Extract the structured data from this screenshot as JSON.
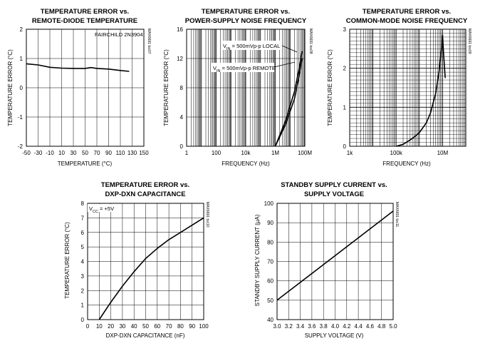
{
  "chart_data": [
    {
      "id": "c1",
      "type": "line",
      "title": [
        "TEMPERATURE ERROR vs.",
        "REMOTE-DIODE TEMPERATURE"
      ],
      "xlabel": "TEMPERATURE (°C)",
      "ylabel": "TEMPERATURE ERROR (°C)",
      "xscale": "linear",
      "xlim": [
        -50,
        150
      ],
      "ylim": [
        -2,
        2
      ],
      "xticks": [
        -50,
        -30,
        -10,
        10,
        30,
        50,
        70,
        90,
        110,
        130,
        150
      ],
      "xtick_labels": [
        "-50",
        "-30",
        "-10",
        "10",
        "30",
        "50",
        "70",
        "90",
        "110",
        "130",
        "150"
      ],
      "yticks": [
        -2,
        -1,
        0,
        1,
        2
      ],
      "ytick_labels": [
        "-2",
        "-1",
        "0",
        "1",
        "2"
      ],
      "grid": true,
      "annotations": [
        "FAIRCHILD 2N3904"
      ],
      "figure_code": "MAX6691 toc07",
      "series": [
        {
          "x": [
            -50,
            -30,
            -10,
            10,
            30,
            50,
            60,
            70,
            90,
            110,
            125
          ],
          "y": [
            0.82,
            0.78,
            0.7,
            0.67,
            0.66,
            0.66,
            0.69,
            0.66,
            0.64,
            0.59,
            0.56
          ]
        }
      ]
    },
    {
      "id": "c2",
      "type": "line",
      "title": [
        "TEMPERATURE ERROR vs.",
        "POWER-SUPPLY NOISE FREQUENCY"
      ],
      "xlabel": "FREQUENCY (Hz)",
      "ylabel": "TEMPERATURE ERROR (°C)",
      "xscale": "log",
      "xlim": [
        1,
        100000000
      ],
      "ylim": [
        0,
        16
      ],
      "xticks": [
        1,
        100,
        10000,
        1000000,
        100000000
      ],
      "xtick_labels": [
        "1",
        "100",
        "10k",
        "1M",
        "100M"
      ],
      "yticks": [
        0,
        4,
        8,
        12,
        16
      ],
      "ytick_labels": [
        "0",
        "4",
        "8",
        "12",
        "16"
      ],
      "grid": true,
      "annotations": [
        "V",
        "IN",
        " = 500mVp-p LOCAL",
        "V",
        "IN",
        " = 500mVp-p REMOTE"
      ],
      "figure_code": "MAX6691 toc08",
      "series": [
        {
          "name": "LOCAL",
          "x": [
            1000000,
            5000000,
            20000000,
            40000000,
            65000000
          ],
          "y": [
            0,
            3.5,
            7.5,
            10.5,
            13
          ]
        },
        {
          "name": "REMOTE",
          "x": [
            1000000,
            5000000,
            20000000,
            40000000,
            65000000
          ],
          "y": [
            0,
            3,
            6.5,
            9.5,
            12
          ]
        }
      ]
    },
    {
      "id": "c3",
      "type": "line",
      "title": [
        "TEMPERATURE ERROR vs.",
        "COMMON-MODE NOISE FREQUENCY"
      ],
      "xlabel": "FREQUENCY (Hz)",
      "ylabel": "TEMPERATURE ERROR (°C)",
      "xscale": "log",
      "xlim": [
        1000,
        100000000
      ],
      "ylim": [
        0,
        3
      ],
      "xticks": [
        1000,
        100000,
        10000000
      ],
      "xtick_labels": [
        "1k",
        "100k",
        "10M"
      ],
      "yticks": [
        0,
        1,
        2,
        3
      ],
      "ytick_labels": [
        "0",
        "1",
        "2",
        "3"
      ],
      "grid": true,
      "figure_code": "MAX6691 toc09",
      "series": [
        {
          "x": [
            100000,
            200000,
            500000,
            1000000,
            2000000,
            3000000,
            5000000,
            7000000,
            9000000,
            10000000,
            11000000,
            13000000
          ],
          "y": [
            0,
            0.05,
            0.2,
            0.35,
            0.6,
            0.85,
            1.35,
            1.9,
            2.5,
            2.85,
            2.4,
            1.75
          ]
        }
      ]
    },
    {
      "id": "c4",
      "type": "line",
      "title": [
        "TEMPERATURE ERROR vs.",
        "DXP-DXN CAPACITANCE"
      ],
      "xlabel": "DXP-DXN CAPACITANCE (nF)",
      "ylabel": "TEMPERATURE ERROR (°C)",
      "xscale": "linear",
      "xlim": [
        0,
        100
      ],
      "ylim": [
        0,
        8
      ],
      "xticks": [
        0,
        10,
        20,
        30,
        40,
        50,
        60,
        70,
        80,
        90,
        100
      ],
      "xtick_labels": [
        "0",
        "10",
        "20",
        "30",
        "40",
        "50",
        "60",
        "70",
        "80",
        "90",
        "100"
      ],
      "yticks": [
        0,
        1,
        2,
        3,
        4,
        5,
        6,
        7,
        8
      ],
      "ytick_labels": [
        "0",
        "1",
        "2",
        "3",
        "4",
        "5",
        "6",
        "7",
        "8"
      ],
      "grid": true,
      "annotations": [
        "V",
        "CC",
        " = +5V"
      ],
      "figure_code": "MAX6691 toc10",
      "series": [
        {
          "x": [
            10,
            20,
            30,
            40,
            50,
            60,
            70,
            80,
            90,
            100
          ],
          "y": [
            0,
            1.2,
            2.3,
            3.3,
            4.2,
            4.9,
            5.5,
            6.0,
            6.5,
            7.0
          ]
        }
      ]
    },
    {
      "id": "c5",
      "type": "line",
      "title": [
        "STANDBY SUPPLY CURRENT vs.",
        "SUPPLY VOLTAGE"
      ],
      "xlabel": "SUPPLY VOLTAGE (V)",
      "ylabel": "STANDBY SUPPLY CURRENT (µA)",
      "xscale": "linear",
      "xlim": [
        3.0,
        5.0
      ],
      "ylim": [
        40,
        100
      ],
      "xticks": [
        3.0,
        3.2,
        3.4,
        3.6,
        3.8,
        4.0,
        4.2,
        4.4,
        4.6,
        4.8,
        5.0
      ],
      "xtick_labels": [
        "3.0",
        "3.2",
        "3.4",
        "3.6",
        "3.8",
        "4.0",
        "4.2",
        "4.4",
        "4.6",
        "4.8",
        "5.0"
      ],
      "yticks": [
        40,
        50,
        60,
        70,
        80,
        90,
        100
      ],
      "ytick_labels": [
        "40",
        "50",
        "60",
        "70",
        "80",
        "90",
        "100"
      ],
      "grid": true,
      "figure_code": "MAX6691 toc11",
      "series": [
        {
          "x": [
            3.0,
            5.0
          ],
          "y": [
            50,
            96
          ]
        }
      ]
    }
  ]
}
